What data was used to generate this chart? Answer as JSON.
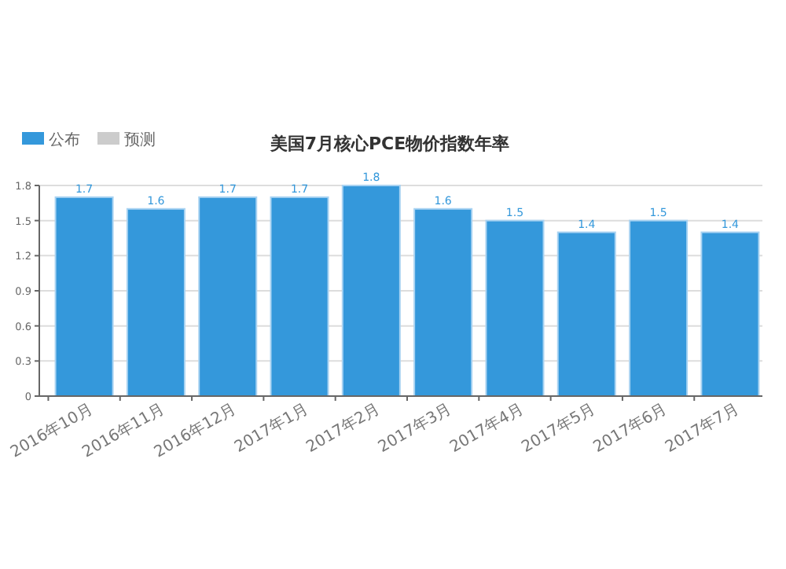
{
  "chart_data": {
    "type": "bar",
    "title": "美国7月核心PCE物价指数年率",
    "categories": [
      "2016年10月",
      "2016年11月",
      "2016年12月",
      "2017年1月",
      "2017年2月",
      "2017年3月",
      "2017年4月",
      "2017年5月",
      "2017年6月",
      "2017年7月"
    ],
    "series": [
      {
        "name": "公布",
        "color": "#3498db",
        "values": [
          1.7,
          1.6,
          1.7,
          1.7,
          1.8,
          1.6,
          1.5,
          1.4,
          1.5,
          1.4
        ]
      },
      {
        "name": "预测",
        "color": "#cccccc",
        "values": [
          null,
          null,
          null,
          null,
          null,
          null,
          null,
          null,
          null,
          null
        ]
      }
    ],
    "ylim": [
      0,
      1.8
    ],
    "yticks": [
      0,
      0.3,
      0.6,
      0.9,
      1.2,
      1.5,
      1.8
    ],
    "grid": "y",
    "legend": "top left",
    "data_labels": true
  }
}
